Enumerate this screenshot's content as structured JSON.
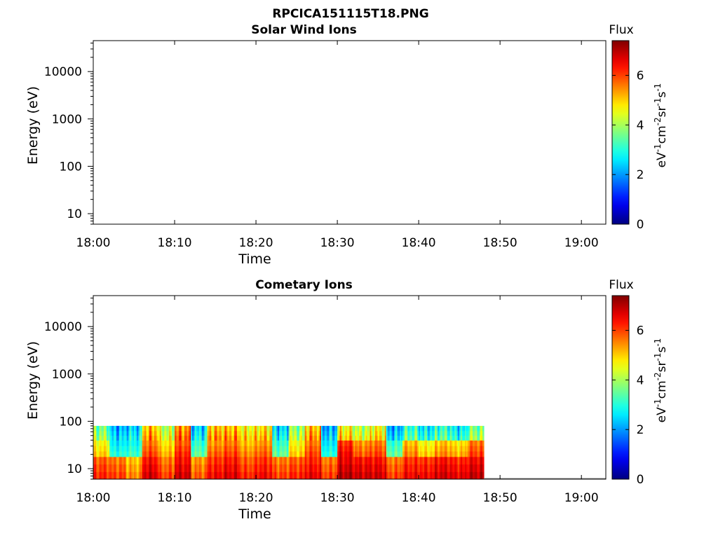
{
  "figure": {
    "title": "RPCICA151115T18.PNG"
  },
  "chart_data": [
    {
      "type": "heatmap",
      "title": "Solar Wind Ions",
      "xlabel": "Time",
      "ylabel": "Energy (eV)",
      "x_ticks": [
        "18:00",
        "18:10",
        "18:20",
        "18:30",
        "18:40",
        "18:50",
        "19:00"
      ],
      "xlim": [
        "18:00",
        "19:03"
      ],
      "y_scale": "log",
      "y_ticks": [
        10,
        100,
        1000,
        10000
      ],
      "y_tick_labels": [
        "10",
        "100",
        "1000",
        "10000"
      ],
      "ylim": [
        6,
        45000
      ],
      "colorbar": {
        "title": "Flux",
        "unit_label": "eV-1cm-2sr-1s-1",
        "ticks": [
          0,
          2,
          4,
          6
        ],
        "range": [
          0,
          7.4
        ],
        "colormap": "jet"
      },
      "data_description": "empty",
      "segments": []
    },
    {
      "type": "heatmap",
      "title": "Cometary Ions",
      "xlabel": "Time",
      "ylabel": "Energy (eV)",
      "x_ticks": [
        "18:00",
        "18:10",
        "18:20",
        "18:30",
        "18:40",
        "18:50",
        "19:00"
      ],
      "xlim": [
        "18:00",
        "19:03"
      ],
      "y_scale": "log",
      "y_ticks": [
        10,
        100,
        1000,
        10000
      ],
      "y_tick_labels": [
        "10",
        "100",
        "1000",
        "10000"
      ],
      "ylim": [
        6,
        45000
      ],
      "colorbar": {
        "title": "Flux",
        "unit_label": "eV-1cm-2sr-1s-1",
        "ticks": [
          0,
          2,
          4,
          6
        ],
        "range": [
          0,
          7.4
        ],
        "colormap": "jet"
      },
      "data_range": {
        "time": [
          "18:00",
          "18:48"
        ],
        "energy": [
          6,
          80
        ]
      },
      "segments": [
        {
          "time": "18:00",
          "low_flux": 6.2,
          "mid_flux": 5.0,
          "high_flux": 4.0,
          "top_energy": 80
        },
        {
          "time": "18:02",
          "low_flux": 6.0,
          "mid_flux": 3.0,
          "high_flux": 2.5,
          "top_energy": 80
        },
        {
          "time": "18:04",
          "low_flux": 5.5,
          "mid_flux": 3.2,
          "high_flux": 2.8,
          "top_energy": 80
        },
        {
          "time": "18:06",
          "low_flux": 6.8,
          "mid_flux": 6.0,
          "high_flux": 5.5,
          "top_energy": 80
        },
        {
          "time": "18:08",
          "low_flux": 6.0,
          "mid_flux": 5.2,
          "high_flux": 4.5,
          "top_energy": 80
        },
        {
          "time": "18:10",
          "low_flux": 6.8,
          "mid_flux": 6.2,
          "high_flux": 5.8,
          "top_energy": 80
        },
        {
          "time": "18:12",
          "low_flux": 5.8,
          "mid_flux": 3.5,
          "high_flux": 2.8,
          "top_energy": 80
        },
        {
          "time": "18:14",
          "low_flux": 6.5,
          "mid_flux": 5.8,
          "high_flux": 5.5,
          "top_energy": 80
        },
        {
          "time": "18:16",
          "low_flux": 6.7,
          "mid_flux": 6.0,
          "high_flux": 5.5,
          "top_energy": 80
        },
        {
          "time": "18:18",
          "low_flux": 6.2,
          "mid_flux": 5.5,
          "high_flux": 5.0,
          "top_energy": 80
        },
        {
          "time": "18:20",
          "low_flux": 6.5,
          "mid_flux": 5.8,
          "high_flux": 5.2,
          "top_energy": 80
        },
        {
          "time": "18:22",
          "low_flux": 6.0,
          "mid_flux": 3.5,
          "high_flux": 2.8,
          "top_energy": 80
        },
        {
          "time": "18:24",
          "low_flux": 6.2,
          "mid_flux": 5.0,
          "high_flux": 4.2,
          "top_energy": 80
        },
        {
          "time": "18:26",
          "low_flux": 6.6,
          "mid_flux": 6.0,
          "high_flux": 5.5,
          "top_energy": 80
        },
        {
          "time": "18:28",
          "low_flux": 6.0,
          "mid_flux": 3.0,
          "high_flux": 2.5,
          "top_energy": 80
        },
        {
          "time": "18:30",
          "low_flux": 7.0,
          "mid_flux": 6.5,
          "high_flux": 5.0,
          "top_energy": 80
        },
        {
          "time": "18:32",
          "low_flux": 6.8,
          "mid_flux": 5.8,
          "high_flux": 4.5,
          "top_energy": 80
        },
        {
          "time": "18:34",
          "low_flux": 6.8,
          "mid_flux": 6.0,
          "high_flux": 5.0,
          "top_energy": 80
        },
        {
          "time": "18:36",
          "low_flux": 6.0,
          "mid_flux": 3.5,
          "high_flux": 2.5,
          "top_energy": 80
        },
        {
          "time": "18:38",
          "low_flux": 6.5,
          "mid_flux": 5.5,
          "high_flux": 3.5,
          "top_energy": 80
        },
        {
          "time": "18:40",
          "low_flux": 6.5,
          "mid_flux": 5.0,
          "high_flux": 3.0,
          "top_energy": 80
        },
        {
          "time": "18:42",
          "low_flux": 6.8,
          "mid_flux": 5.5,
          "high_flux": 3.5,
          "top_energy": 80
        },
        {
          "time": "18:44",
          "low_flux": 6.6,
          "mid_flux": 5.2,
          "high_flux": 3.0,
          "top_energy": 80
        },
        {
          "time": "18:46",
          "low_flux": 6.9,
          "mid_flux": 6.0,
          "high_flux": 4.0,
          "top_energy": 80
        }
      ]
    }
  ]
}
